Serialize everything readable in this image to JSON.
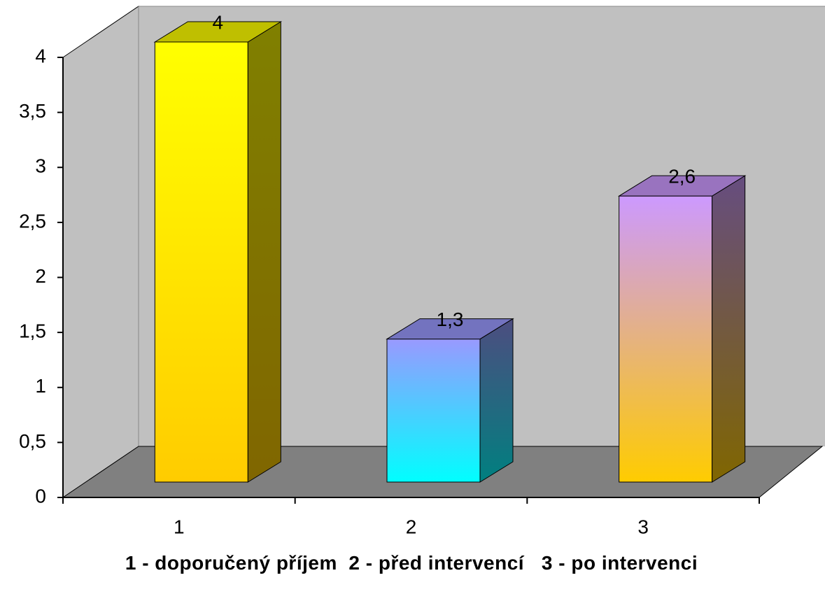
{
  "chart_data": {
    "type": "bar3d",
    "categories": [
      "1",
      "2",
      "3"
    ],
    "values": [
      4,
      1.3,
      2.6
    ],
    "value_labels": [
      "4",
      "1,3",
      "2,6"
    ],
    "colors": [
      [
        "#ffff00",
        "#ffcc00"
      ],
      [
        "#9999ff",
        "#00ffff"
      ],
      [
        "#cc99ff",
        "#ffcc00"
      ]
    ],
    "ylim": [
      0,
      4
    ],
    "yticks": [
      0,
      {
        "value": 0.5,
        "label": "0,5"
      },
      1,
      {
        "value": 1.5,
        "label": "1,5"
      },
      2,
      {
        "value": 2.5,
        "label": "2,5"
      },
      3,
      {
        "value": 3.5,
        "label": "3,5"
      },
      4
    ],
    "x_label": "1 - doporučený příjem  2 - před intervencí   3 - po intervenci"
  }
}
